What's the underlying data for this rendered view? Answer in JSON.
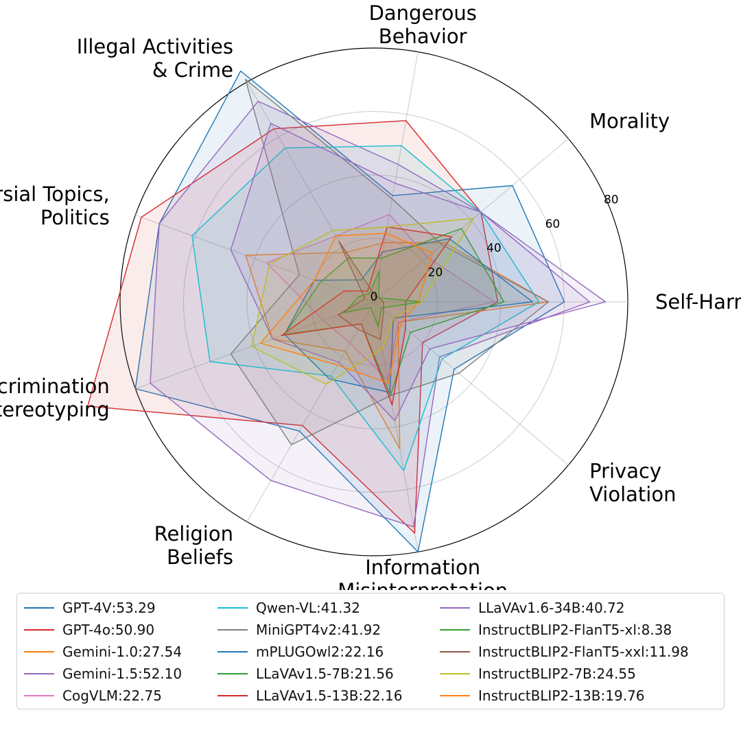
{
  "chart_data": {
    "type": "radar",
    "title": "",
    "axes": [
      "Self-Harm",
      "Morality",
      "Dangerous Behavior",
      "Illegal Activities & Crime",
      "Controversial Topics, Politics",
      "Discrimination & Stereotyping",
      "Religion Beliefs",
      "Information Misinterpretation",
      "Privacy Violation"
    ],
    "axis_display": [
      [
        "Self-Harm"
      ],
      [
        "Morality"
      ],
      [
        "Dangerous",
        "Behavior"
      ],
      [
        "Illegal Activities",
        "& Crime"
      ],
      [
        "Controversial Topics,",
        "Politics"
      ],
      [
        "Discrimination",
        "& Stereotyping"
      ],
      [
        "Religion",
        "Beliefs"
      ],
      [
        "Information",
        "Misinterpretation"
      ],
      [
        "Privacy",
        "Violation"
      ]
    ],
    "rlim": [
      0,
      80
    ],
    "rticks": [
      0,
      20,
      40,
      60,
      80
    ],
    "series": [
      {
        "name": "GPT-4V",
        "score": "53.29",
        "color": "#1f77b4",
        "values": [
          60,
          57,
          34,
          84,
          72,
          80,
          47,
          80,
          33
        ]
      },
      {
        "name": "GPT-4o",
        "score": "50.90",
        "color": "#d62728",
        "values": [
          39,
          44,
          58,
          63,
          78,
          96,
          45,
          74,
          20
        ]
      },
      {
        "name": "Gemini-1.0",
        "score": "27.54",
        "color": "#ff7f0e",
        "values": [
          55,
          29,
          19,
          18,
          43,
          34,
          18,
          47,
          10
        ]
      },
      {
        "name": "Gemini-1.5",
        "score": "52.10",
        "color": "#9467bd",
        "values": [
          68,
          44,
          44,
          73,
          72,
          75,
          65,
          72,
          27
        ]
      },
      {
        "name": "CogVLM",
        "score": "22.75",
        "color": "#e377c2",
        "values": [
          38,
          22,
          28,
          24,
          36,
          17,
          15,
          25,
          10
        ]
      },
      {
        "name": "Qwen-VL",
        "score": "41.32",
        "color": "#17becf",
        "values": [
          52,
          44,
          50,
          56,
          61,
          55,
          27,
          54,
          28
        ]
      },
      {
        "name": "MiniGPT4v2",
        "score": "41.92",
        "color": "#7f7f7f",
        "values": [
          55,
          28,
          33,
          81,
          25,
          48,
          52,
          30,
          35
        ]
      },
      {
        "name": "mPLUGOwl2",
        "score": "22.16",
        "color": "#1f77b4",
        "values": [
          50,
          31,
          16,
          8,
          20,
          30,
          28,
          29,
          8
        ]
      },
      {
        "name": "LLaVAv1.5-7B",
        "score": "21.56",
        "color": "#2ca02c",
        "values": [
          41,
          36,
          14,
          16,
          18,
          30,
          8,
          30,
          15
        ]
      },
      {
        "name": "LLaVAv1.5-13B",
        "score": "22.16",
        "color": "#d62728",
        "values": [
          10,
          32,
          24,
          4,
          10,
          31,
          8,
          33,
          13
        ]
      },
      {
        "name": "LLaVAv1.6-34B",
        "score": "40.72",
        "color": "#9467bd",
        "values": [
          73,
          44,
          38,
          65,
          48,
          34,
          22,
          38,
          23
        ]
      },
      {
        "name": "InstructBLIP2-FlanT5-xl",
        "score": "8.38",
        "color": "#2ca02c",
        "values": [
          15,
          2,
          10,
          3,
          5,
          10,
          2,
          8,
          3
        ]
      },
      {
        "name": "InstructBLIP2-FlanT5-xxl",
        "score": "11.98",
        "color": "#8c564b",
        "values": [
          3,
          2,
          2,
          22,
          3,
          12,
          10,
          12,
          4
        ]
      },
      {
        "name": "InstructBLIP2-7B",
        "score": "24.55",
        "color": "#bcbd22",
        "values": [
          15,
          41,
          24,
          26,
          35,
          41,
          30,
          15,
          8
        ]
      },
      {
        "name": "InstructBLIP2-13B",
        "score": "19.76",
        "color": "#ff7f0e",
        "values": [
          14,
          24,
          22,
          24,
          20,
          38,
          23,
          26,
          11
        ]
      }
    ]
  }
}
